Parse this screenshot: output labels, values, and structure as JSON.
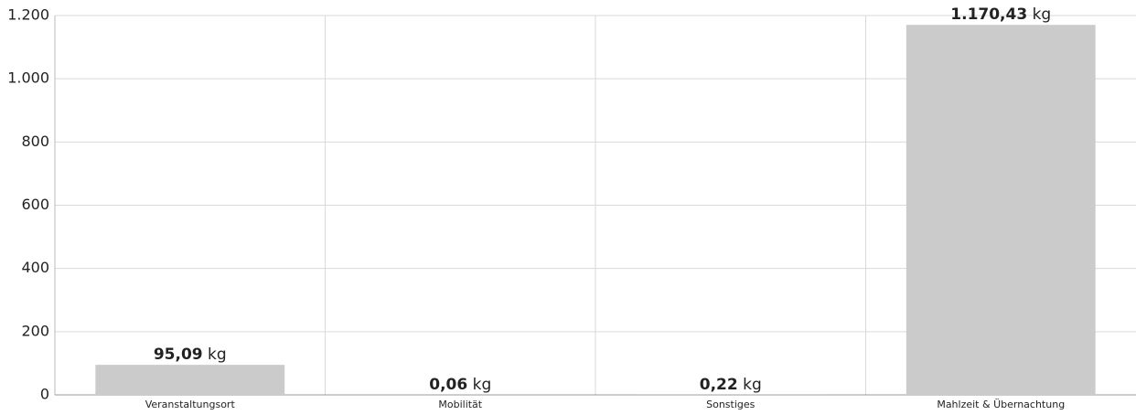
{
  "chart_data": {
    "type": "bar",
    "categories": [
      "Veranstaltungsort",
      "Mobilität",
      "Sonstiges",
      "Mahlzeit & Übernachtung"
    ],
    "values": [
      95.09,
      0.06,
      0.22,
      1170.43
    ],
    "value_labels": [
      "95,09 kg",
      "0,06 kg",
      "0,22 kg",
      "1.170,43 kg"
    ],
    "color": "#cbcbcb",
    "ylim": [
      0,
      1200
    ],
    "yticks": [
      0,
      200,
      400,
      600,
      800,
      {
        "value": 1000,
        "label": "1.000"
      },
      {
        "value": 1200,
        "label": "1.200"
      }
    ],
    "grid": true
  }
}
